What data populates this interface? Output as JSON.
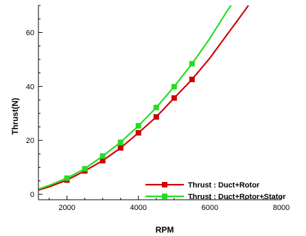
{
  "colors": {
    "axis": "#000000",
    "background": "#ffffff"
  },
  "chart_data": {
    "type": "line",
    "title": "",
    "xlabel": "RPM",
    "ylabel": "Thrust(N)",
    "xlim": [
      1200,
      8000
    ],
    "ylim": [
      -2,
      70
    ],
    "xticks": [
      2000,
      4000,
      6000,
      8000
    ],
    "yticks": [
      0,
      20,
      40,
      60
    ],
    "x_minor_step": 500,
    "y_minor_step": 5,
    "grid": false,
    "legend_position": "bottom-right",
    "series": [
      {
        "name": "Thrust : Duct+Rotor",
        "color": "#cc0000",
        "marker": "square",
        "x": [
          2000,
          2500,
          3000,
          3500,
          4000,
          4500,
          5000,
          5500
        ],
        "y": [
          5.3,
          8.7,
          12.5,
          17.2,
          22.8,
          28.7,
          35.7,
          42.6
        ],
        "curve_x": [
          1200,
          1500,
          2000,
          2500,
          3000,
          3500,
          4000,
          4500,
          5000,
          5500,
          6000,
          6500,
          7000,
          7150
        ],
        "curve_y": [
          1.6,
          2.8,
          5.3,
          8.7,
          12.5,
          17.2,
          22.8,
          28.7,
          35.7,
          42.6,
          50.5,
          59.5,
          68.5,
          71.5
        ]
      },
      {
        "name": "Thrust : Duct+Rotor+Stator",
        "color": "#22dd22",
        "marker": "square",
        "x": [
          2000,
          2500,
          3000,
          3500,
          4000,
          4500,
          5000,
          5500
        ],
        "y": [
          6.0,
          9.5,
          14.2,
          19.3,
          25.4,
          32.2,
          39.9,
          48.4
        ],
        "curve_x": [
          1200,
          1500,
          2000,
          2500,
          3000,
          3500,
          4000,
          4500,
          5000,
          5500,
          6000,
          6500,
          6700
        ],
        "curve_y": [
          1.9,
          3.3,
          6.0,
          9.5,
          14.2,
          19.3,
          25.4,
          32.2,
          39.9,
          48.4,
          57.8,
          68.3,
          72.0
        ]
      }
    ]
  }
}
